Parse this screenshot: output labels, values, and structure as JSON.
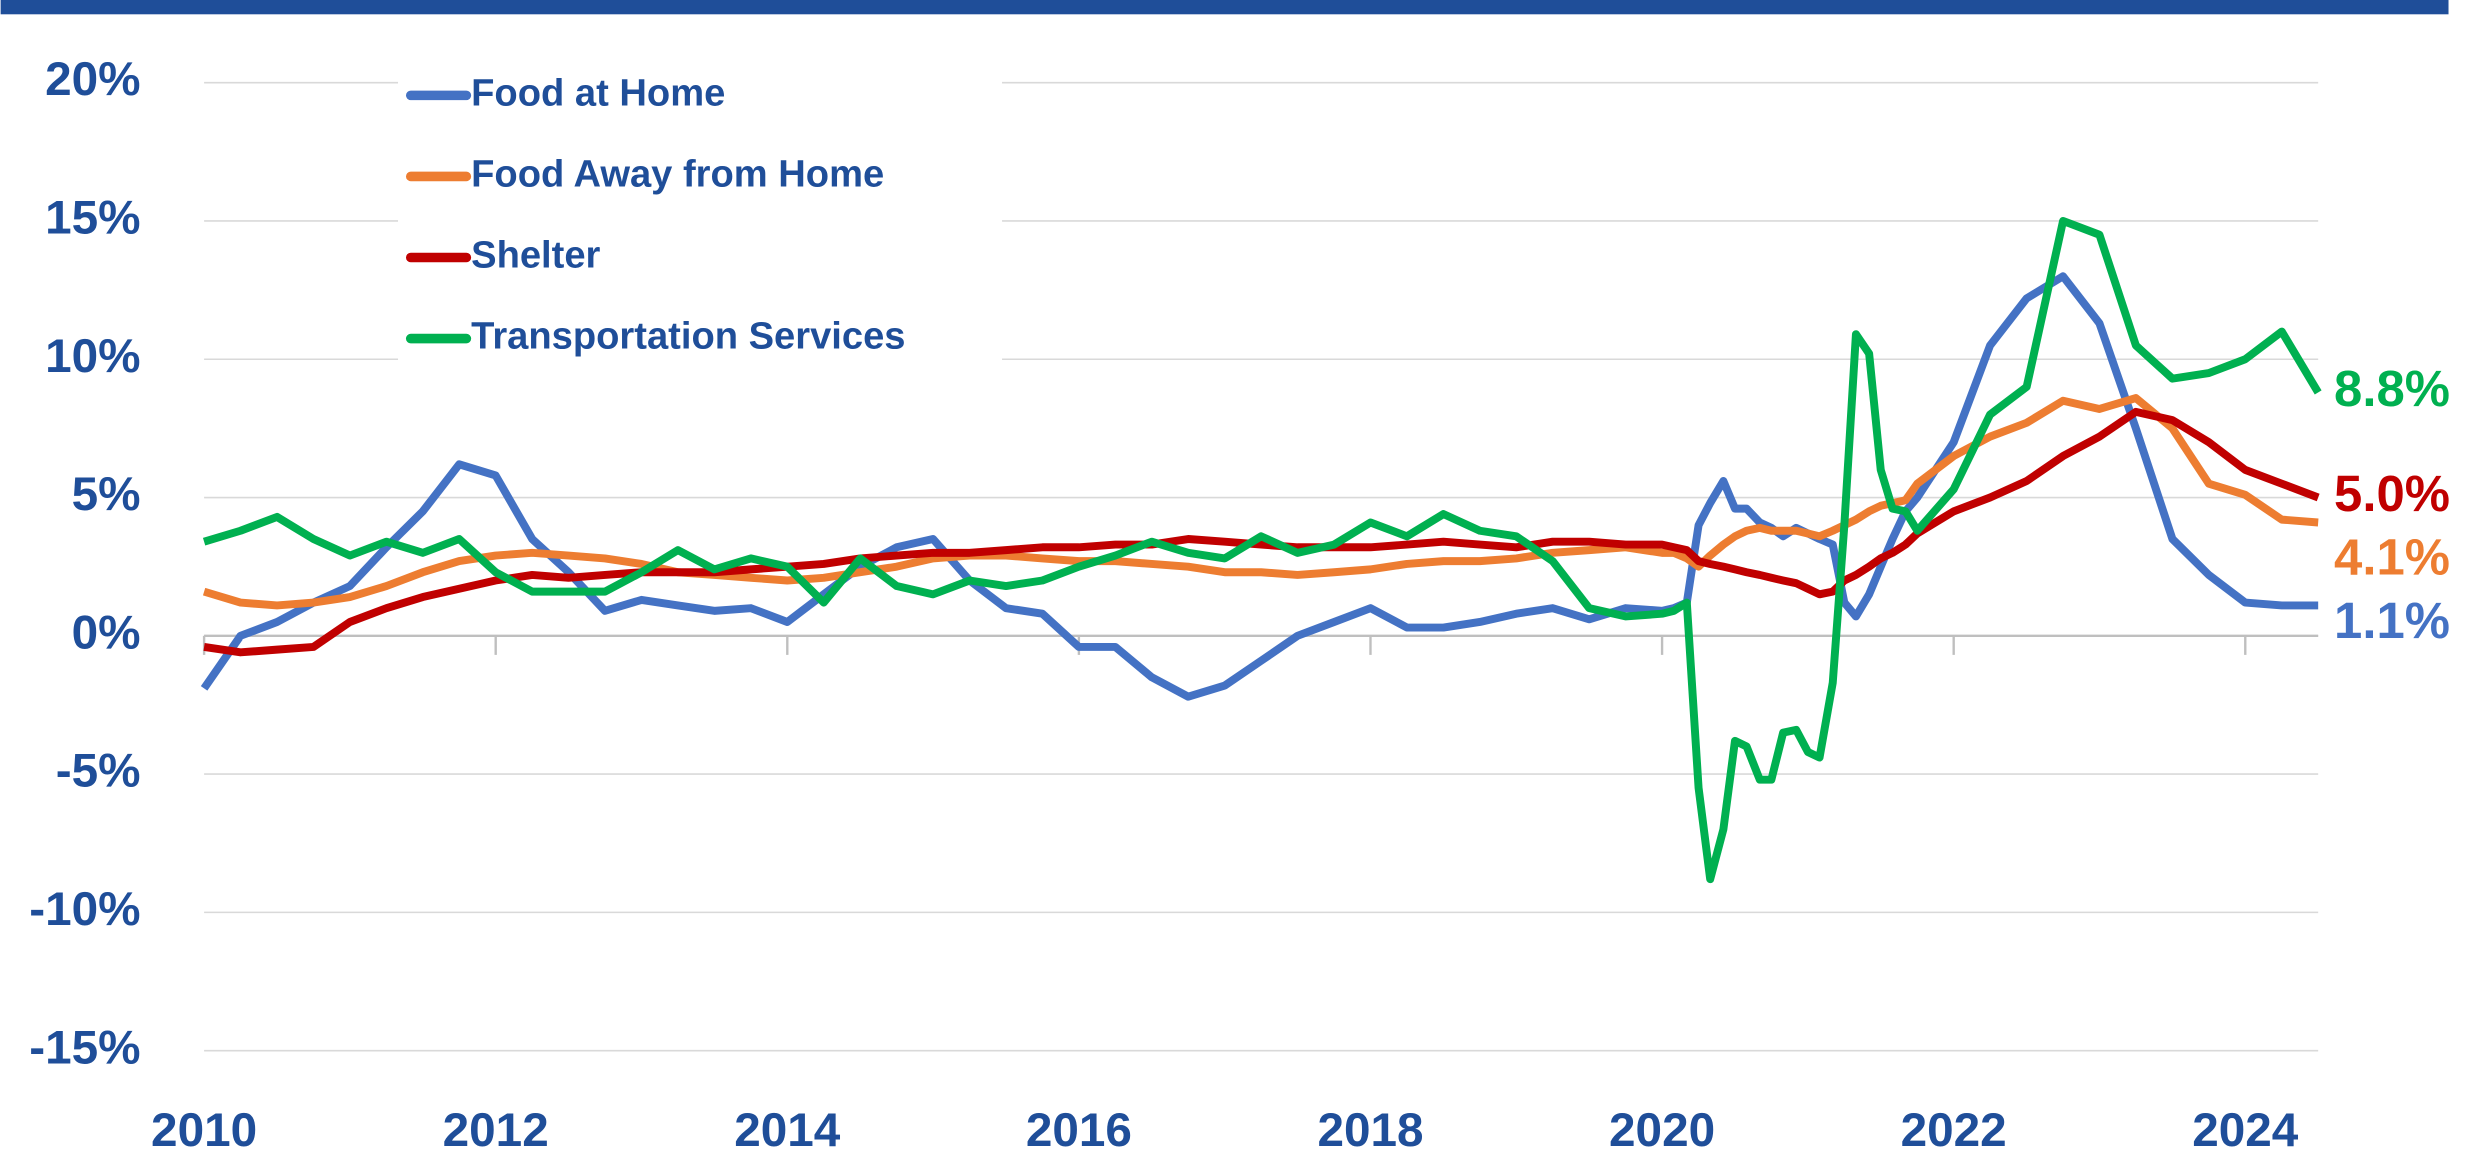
{
  "chart_data": {
    "type": "line",
    "x": [
      2010,
      2010.25,
      2010.5,
      2010.75,
      2011,
      2011.25,
      2011.5,
      2011.75,
      2012,
      2012.25,
      2012.5,
      2012.75,
      2013,
      2013.25,
      2013.5,
      2013.75,
      2014,
      2014.25,
      2014.5,
      2014.75,
      2015,
      2015.25,
      2015.5,
      2015.75,
      2016,
      2016.25,
      2016.5,
      2016.75,
      2017,
      2017.25,
      2017.5,
      2017.75,
      2018,
      2018.25,
      2018.5,
      2018.75,
      2019,
      2019.25,
      2019.5,
      2019.75,
      2020,
      2020.08,
      2020.17,
      2020.25,
      2020.33,
      2020.42,
      2020.5,
      2020.58,
      2020.67,
      2020.75,
      2020.83,
      2020.92,
      2021,
      2021.08,
      2021.17,
      2021.25,
      2021.33,
      2021.42,
      2021.5,
      2021.58,
      2021.67,
      2021.75,
      2022,
      2022.25,
      2022.5,
      2022.75,
      2023,
      2023.25,
      2023.5,
      2023.75,
      2024,
      2024.25,
      2024.5
    ],
    "series": [
      {
        "name": "Food at Home",
        "color": "#4472c4",
        "last_label": "1.1%",
        "values": [
          -1.9,
          0,
          0.5,
          1.2,
          1.8,
          3.2,
          4.5,
          6.2,
          5.8,
          3.5,
          2.3,
          0.9,
          1.3,
          1.1,
          0.9,
          1.0,
          0.5,
          1.5,
          2.5,
          3.2,
          3.5,
          2.0,
          1.0,
          0.8,
          -0.4,
          -0.4,
          -1.5,
          -2.2,
          -1.8,
          -0.9,
          0.0,
          0.5,
          1.0,
          0.3,
          0.3,
          0.5,
          0.8,
          1.0,
          0.6,
          1.0,
          0.9,
          1.0,
          1.2,
          4.0,
          4.8,
          5.6,
          4.6,
          4.6,
          4.1,
          3.9,
          3.6,
          3.9,
          3.7,
          3.5,
          3.3,
          1.2,
          0.7,
          1.5,
          2.5,
          3.5,
          4.5,
          5.0,
          7.0,
          10.5,
          12.2,
          13.0,
          11.3,
          7.5,
          3.5,
          2.2,
          1.2,
          1.1,
          1.1
        ]
      },
      {
        "name": "Food Away from Home",
        "color": "#ed7d31",
        "last_label": "4.1%",
        "values": [
          1.6,
          1.2,
          1.1,
          1.2,
          1.4,
          1.8,
          2.3,
          2.7,
          2.9,
          3.0,
          2.9,
          2.8,
          2.6,
          2.3,
          2.2,
          2.1,
          2.0,
          2.1,
          2.3,
          2.5,
          2.8,
          2.9,
          2.9,
          2.8,
          2.7,
          2.7,
          2.6,
          2.5,
          2.3,
          2.3,
          2.2,
          2.3,
          2.4,
          2.6,
          2.7,
          2.7,
          2.8,
          3.0,
          3.1,
          3.2,
          3.0,
          3.0,
          2.8,
          2.5,
          2.9,
          3.3,
          3.6,
          3.8,
          3.9,
          3.8,
          3.8,
          3.8,
          3.7,
          3.6,
          3.8,
          4.0,
          4.2,
          4.5,
          4.7,
          4.8,
          4.9,
          5.5,
          6.5,
          7.2,
          7.7,
          8.5,
          8.2,
          8.6,
          7.5,
          5.5,
          5.1,
          4.2,
          4.1
        ]
      },
      {
        "name": "Shelter",
        "color": "#c00000",
        "last_label": "5.0%",
        "values": [
          -0.4,
          -0.6,
          -0.5,
          -0.4,
          0.5,
          1.0,
          1.4,
          1.7,
          2.0,
          2.2,
          2.1,
          2.2,
          2.3,
          2.3,
          2.3,
          2.4,
          2.5,
          2.6,
          2.8,
          2.9,
          3.0,
          3.0,
          3.1,
          3.2,
          3.2,
          3.3,
          3.3,
          3.5,
          3.4,
          3.3,
          3.2,
          3.2,
          3.2,
          3.3,
          3.4,
          3.3,
          3.2,
          3.4,
          3.4,
          3.3,
          3.3,
          3.2,
          3.1,
          2.7,
          2.6,
          2.5,
          2.4,
          2.3,
          2.2,
          2.1,
          2.0,
          1.9,
          1.7,
          1.5,
          1.6,
          2.0,
          2.2,
          2.5,
          2.8,
          3.0,
          3.3,
          3.7,
          4.5,
          5.0,
          5.6,
          6.5,
          7.2,
          8.1,
          7.8,
          7.0,
          6.0,
          5.5,
          5.0
        ]
      },
      {
        "name": "Transportation Services",
        "color": "#00b050",
        "last_label": "8.8%",
        "values": [
          3.4,
          3.8,
          4.3,
          3.5,
          2.9,
          3.4,
          3.0,
          3.5,
          2.3,
          1.6,
          1.6,
          1.6,
          2.3,
          3.1,
          2.4,
          2.8,
          2.5,
          1.2,
          2.8,
          1.8,
          1.5,
          2.0,
          1.8,
          2.0,
          2.5,
          2.9,
          3.4,
          3.0,
          2.8,
          3.6,
          3.0,
          3.3,
          4.1,
          3.6,
          4.4,
          3.8,
          3.6,
          2.7,
          1.0,
          0.7,
          0.8,
          0.9,
          1.2,
          -5.5,
          -8.8,
          -7.0,
          -3.8,
          -4.0,
          -5.2,
          -5.2,
          -3.5,
          -3.4,
          -4.2,
          -4.4,
          -1.7,
          4.0,
          10.9,
          10.2,
          6.0,
          4.6,
          4.5,
          3.8,
          5.3,
          8.0,
          9.0,
          15.0,
          14.5,
          10.5,
          9.3,
          9.5,
          10.0,
          11.0,
          8.8
        ]
      }
    ],
    "xlim": [
      2010,
      2024.5
    ],
    "xticks": [
      2010,
      2012,
      2014,
      2016,
      2018,
      2020,
      2022,
      2024
    ],
    "ylim": [
      -15,
      20
    ],
    "yticks": [
      {
        "value": -15,
        "label": "-15%"
      },
      {
        "value": -10,
        "label": "-10%"
      },
      {
        "value": -5,
        "label": "-5%"
      },
      {
        "value": 0,
        "label": "0%"
      },
      {
        "value": 5,
        "label": "5%"
      },
      {
        "value": 10,
        "label": "10%"
      },
      {
        "value": 15,
        "label": "15%"
      },
      {
        "value": 20,
        "label": "20%"
      }
    ],
    "grid": true
  }
}
